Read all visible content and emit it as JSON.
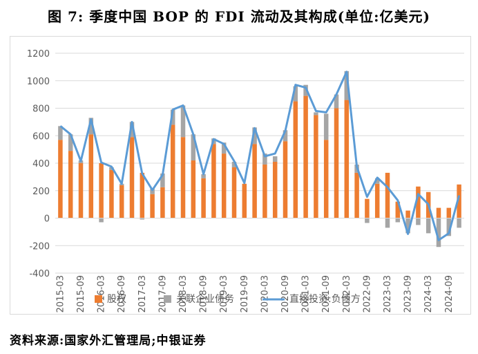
{
  "title": "图 7:  季度中国 BOP 的 FDI 流动及其构成(单位:亿美元)",
  "source": "资料来源:国家外汇管理局;中银证券",
  "colors": {
    "equity": "#ED7D31",
    "debt": "#A5A5A5",
    "line": "#5B9BD5",
    "grid": "#D9D9D9",
    "axis_text": "#595959"
  },
  "chart_data": {
    "type": "bar",
    "stacked": true,
    "title": "",
    "ylim": [
      -400,
      1200
    ],
    "yticks": [
      -400,
      -200,
      0,
      200,
      400,
      600,
      800,
      1000,
      1200
    ],
    "grid": true,
    "legend_position": "bottom",
    "categories": [
      "2015-03",
      "2015-06",
      "2015-09",
      "2015-12",
      "2016-03",
      "2016-06",
      "2016-09",
      "2016-12",
      "2017-03",
      "2017-06",
      "2017-09",
      "2017-12",
      "2018-03",
      "2018-06",
      "2018-09",
      "2018-12",
      "2019-03",
      "2019-06",
      "2019-09",
      "2019-12",
      "2020-03",
      "2020-06",
      "2020-09",
      "2020-12",
      "2021-03",
      "2021-06",
      "2021-09",
      "2021-12",
      "2022-03",
      "2022-06",
      "2022-09",
      "2022-12",
      "2023-03",
      "2023-06",
      "2023-09",
      "2023-12",
      "2024-03",
      "2024-06",
      "2024-09",
      "2024-12"
    ],
    "x_tick_labels": [
      "2015-03",
      "2015-09",
      "2016-03",
      "2016-09",
      "2017-03",
      "2017-09",
      "2018-03",
      "2018-09",
      "2019-03",
      "2019-09",
      "2020-03",
      "2020-09",
      "2021-03",
      "2021-09",
      "2022-03",
      "2022-09",
      "2023-03",
      "2023-09",
      "2024-03",
      "2024-09"
    ],
    "series": [
      {
        "name": "股权",
        "type": "bar",
        "values": [
          570,
          490,
          400,
          610,
          400,
          350,
          240,
          590,
          330,
          175,
          225,
          680,
          590,
          420,
          290,
          540,
          470,
          370,
          250,
          540,
          390,
          410,
          560,
          850,
          890,
          750,
          570,
          800,
          860,
          330,
          140,
          250,
          330,
          120,
          55,
          230,
          190,
          75,
          75,
          245
        ]
      },
      {
        "name": "关联企业债务",
        "type": "bar",
        "values": [
          100,
          120,
          20,
          120,
          -30,
          20,
          10,
          110,
          -10,
          40,
          100,
          110,
          230,
          190,
          30,
          40,
          80,
          40,
          0,
          120,
          80,
          40,
          80,
          110,
          80,
          20,
          190,
          100,
          210,
          60,
          -35,
          40,
          -70,
          -30,
          -110,
          -50,
          -110,
          -210,
          -130,
          -70
        ]
      },
      {
        "name": "直接投资:负债方",
        "type": "line",
        "values": [
          670,
          610,
          415,
          720,
          405,
          375,
          250,
          700,
          325,
          205,
          315,
          790,
          820,
          610,
          320,
          575,
          540,
          415,
          255,
          655,
          450,
          470,
          635,
          970,
          950,
          780,
          770,
          900,
          1065,
          375,
          155,
          295,
          225,
          130,
          -115,
          175,
          100,
          -160,
          -110,
          165
        ]
      }
    ]
  }
}
